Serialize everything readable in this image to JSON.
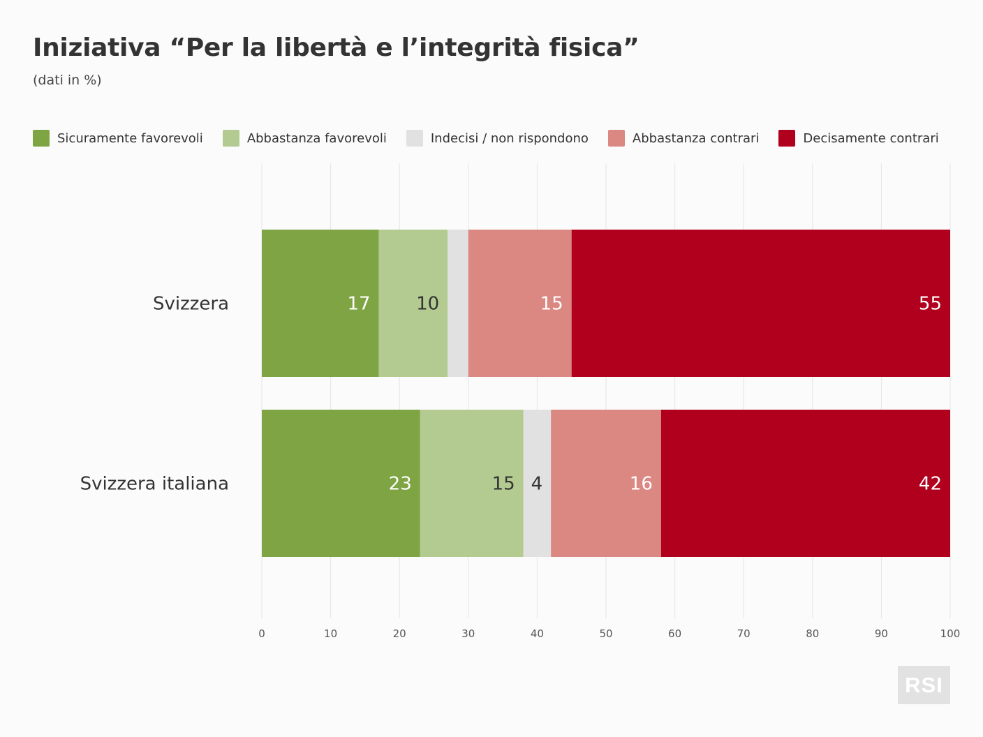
{
  "title": "Iniziativa “Per la libertà e l’integrità fisica”",
  "subtitle": "(dati in %)",
  "logo_text": "RSI",
  "chart_data": {
    "type": "bar",
    "orientation": "horizontal",
    "stacked": true,
    "categories": [
      "Svizzera",
      "Svizzera italiana"
    ],
    "series": [
      {
        "name": "Sicuramente favorevoli",
        "color": "#7ea444",
        "label_color": "#ffffff",
        "values": [
          17,
          23
        ],
        "labels": [
          "17",
          "23"
        ]
      },
      {
        "name": "Abbastanza favorevoli",
        "color": "#b3ca91",
        "label_color": "#333333",
        "values": [
          10,
          15
        ],
        "labels": [
          "10",
          "15"
        ]
      },
      {
        "name": "Indecisi / non rispondono",
        "color": "#e1e1e1",
        "label_color": "#333333",
        "values": [
          3,
          4
        ],
        "labels": [
          "",
          "4"
        ]
      },
      {
        "name": "Abbastanza contrari",
        "color": "#db8883",
        "label_color": "#ffffff",
        "values": [
          15,
          16
        ],
        "labels": [
          "15",
          "16"
        ]
      },
      {
        "name": "Decisamente contrari",
        "color": "#b0001e",
        "label_color": "#ffffff",
        "values": [
          55,
          42
        ],
        "labels": [
          "55",
          "42"
        ]
      }
    ],
    "xlim": [
      0,
      100
    ],
    "xticks": [
      0,
      10,
      20,
      30,
      40,
      50,
      60,
      70,
      80,
      90,
      100
    ],
    "grid": true,
    "legend_position": "top"
  }
}
